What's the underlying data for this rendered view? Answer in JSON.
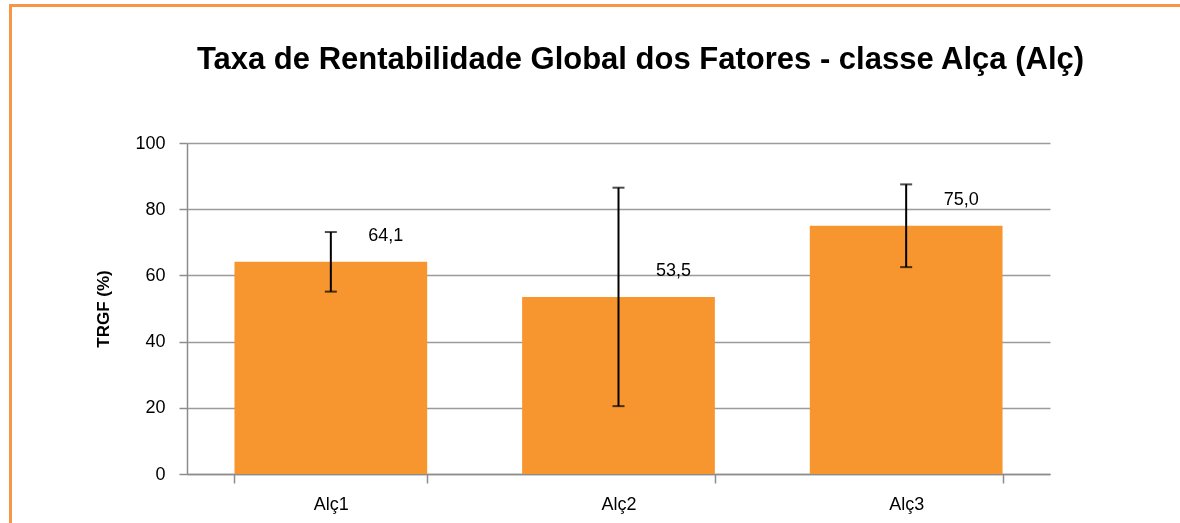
{
  "chart_data": {
    "type": "bar",
    "title": "Taxa de Rentabilidade Global dos Fatores -  classe Alça (Alç)",
    "ylabel": "TRGF (%)",
    "categories": [
      "Alç1",
      "Alç2",
      "Alç3"
    ],
    "values": [
      64.1,
      53.5,
      75.0
    ],
    "color": "#f7962e",
    "errors": [
      9,
      33,
      12.5
    ],
    "value_labels": [
      "64,1",
      "53,5",
      "75,0"
    ],
    "ylim": [
      0,
      100
    ],
    "yticks": [
      0,
      20,
      40,
      60,
      80,
      100
    ],
    "grid": "y"
  }
}
